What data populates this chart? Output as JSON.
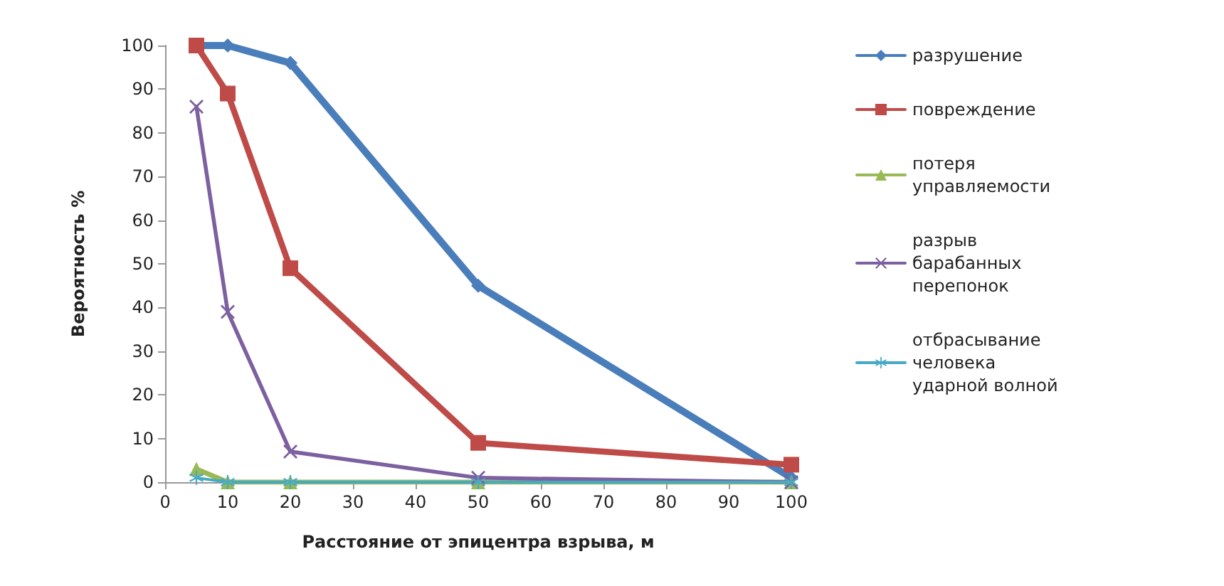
{
  "chart_data": {
    "type": "line",
    "xlabel": "Расстояние от эпицентра взрыва, м",
    "ylabel": "Вероятность %",
    "x": [
      5,
      10,
      20,
      50,
      100
    ],
    "xlim": [
      0,
      100
    ],
    "xticks": [
      0,
      10,
      20,
      30,
      40,
      50,
      60,
      70,
      80,
      90,
      100
    ],
    "ylim": [
      0,
      100
    ],
    "yticks": [
      0,
      10,
      20,
      30,
      40,
      50,
      60,
      70,
      80,
      90,
      100
    ],
    "grid": false,
    "legend": "right",
    "line_style": "solid",
    "series": [
      {
        "name": "разрушение",
        "color": "#4a7ebb",
        "marker": "diamond",
        "values": [
          100,
          100,
          96,
          45,
          1
        ]
      },
      {
        "name": "повреждение",
        "color": "#be4b48",
        "marker": "square",
        "values": [
          100,
          89,
          49,
          9,
          4
        ]
      },
      {
        "name": "потеря управляемости",
        "color": "#98b954",
        "marker": "triangle",
        "values": [
          3,
          0,
          0,
          0,
          0
        ]
      },
      {
        "name": "разрыв барабанных перепонок",
        "color": "#7d60a0",
        "marker": "cross",
        "values": [
          86,
          39,
          7,
          1,
          0
        ]
      },
      {
        "name": "отбрасывание человека ударной волной",
        "color": "#46aac5",
        "marker": "star",
        "values": [
          1,
          0,
          0,
          0,
          0
        ]
      }
    ]
  }
}
